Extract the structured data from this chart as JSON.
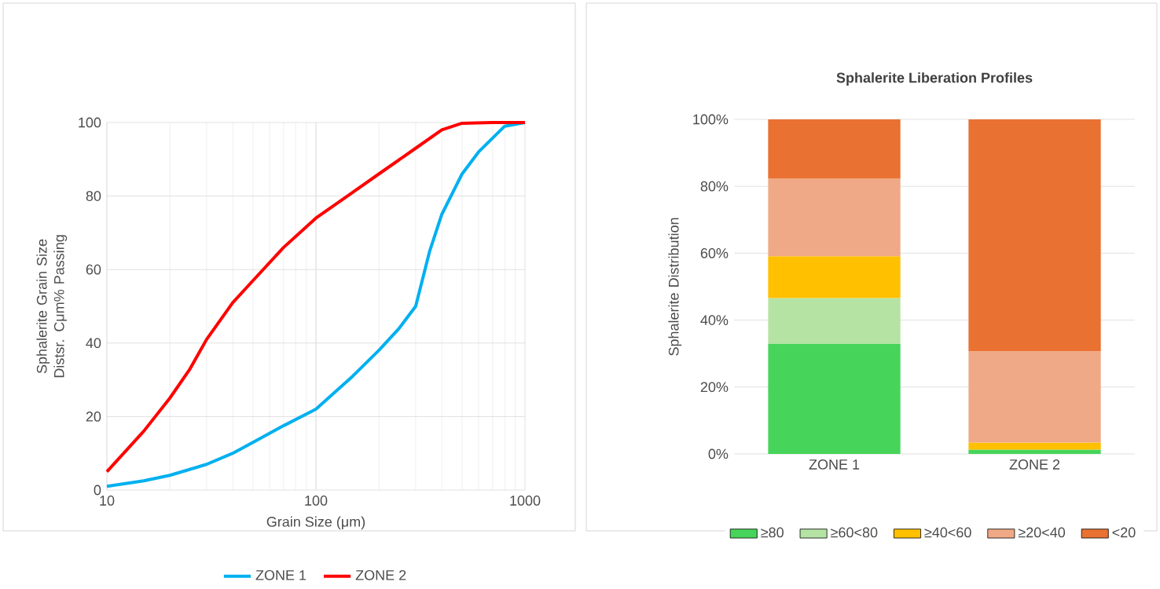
{
  "chart_data": [
    {
      "type": "line",
      "xlabel": "Grain Size (μm)",
      "ylabel": "Sphalerite Grain Size Distsr. Cμm% Passing",
      "log": "x",
      "grid": true,
      "legend": "bottom",
      "xlim": [
        10,
        1000
      ],
      "ylim": [
        0,
        100
      ],
      "xticks": [
        10,
        100,
        1000
      ],
      "yticks": [
        0,
        20,
        40,
        60,
        80,
        100
      ],
      "series": [
        {
          "name": "ZONE 1",
          "color": "#00b0f0",
          "x": [
            10,
            15,
            20,
            30,
            40,
            50,
            70,
            100,
            150,
            200,
            250,
            300,
            350,
            400,
            500,
            600,
            800,
            1000
          ],
          "values": [
            1,
            2.5,
            4,
            7,
            10,
            13,
            17.5,
            22,
            31,
            38,
            44,
            50,
            65,
            75,
            86,
            92,
            99,
            100
          ]
        },
        {
          "name": "ZONE 2",
          "color": "#ff0000",
          "x": [
            10,
            15,
            20,
            25,
            30,
            40,
            50,
            70,
            100,
            150,
            200,
            300,
            400,
            500,
            700,
            1000
          ],
          "values": [
            5,
            16,
            25,
            33,
            41,
            51,
            57,
            66,
            74,
            81,
            86,
            93,
            98,
            99.8,
            100,
            100
          ]
        }
      ]
    },
    {
      "type": "bar",
      "stacked": true,
      "title": "Sphalerite Liberation Profiles",
      "ylabel": "Sphalerite Distribution",
      "grid": "y",
      "legend": "bottom",
      "categories": [
        "ZONE 1",
        "ZONE 2"
      ],
      "ylim": [
        0,
        100
      ],
      "yticks": [
        {
          "value": 0,
          "label": "0%"
        },
        {
          "value": 20,
          "label": "20%"
        },
        {
          "value": 40,
          "label": "40%"
        },
        {
          "value": 60,
          "label": "60%"
        },
        {
          "value": 80,
          "label": "80%"
        },
        {
          "value": 100,
          "label": "100%"
        }
      ],
      "series": [
        {
          "name": "≥80",
          "color": "#47d45a",
          "values": [
            33,
            1.3
          ]
        },
        {
          "name": "≥60<80",
          "color": "#b5e3a4",
          "values": [
            13.6,
            0
          ]
        },
        {
          "name": "≥40<60",
          "color": "#ffc000",
          "values": [
            12.5,
            2.1
          ]
        },
        {
          "name": "≥20<40",
          "color": "#f0a986",
          "values": [
            23.2,
            27.3
          ]
        },
        {
          "name": "<20",
          "color": "#e97132",
          "values": [
            17.7,
            69.3
          ]
        }
      ]
    }
  ]
}
